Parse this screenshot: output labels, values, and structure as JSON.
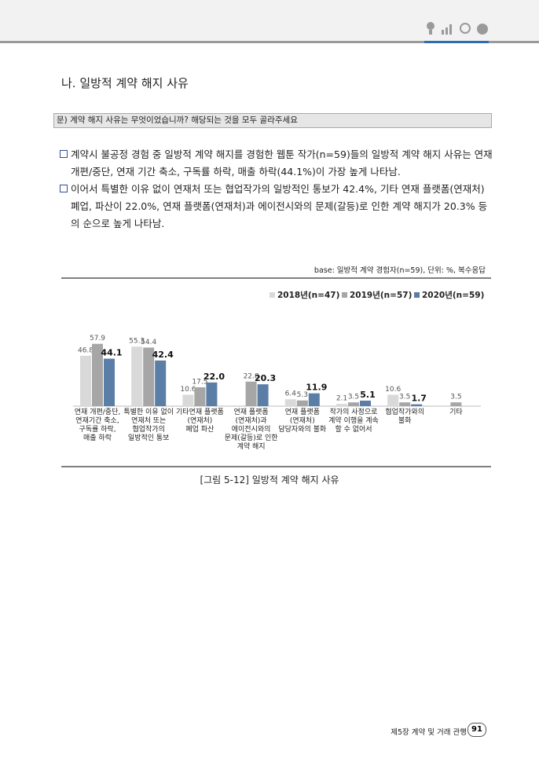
{
  "header": {
    "section_title": "나. 일방적 계약 해지 사유",
    "question": "문) 계약 해지 사유는 무엇이었습니까? 해당되는 것을 모두 골라주세요"
  },
  "bullets": [
    "계약시 불공정 경험 중 일방적 계약 해지를 경험한 웹툰 작가(n=59)들의 일방적 계약 해지 사유는 연재 개편/중단, 연재 기간 축소, 구독률 하락, 매출 하락(44.1%)이 가장 높게 나타남.",
    "이어서 특별한 이유 없이 연재처 또는 협업작가의 일방적인 통보가 42.4%, 기타 연재 플랫폼(연재처) 폐업, 파산이 22.0%, 연재 플랫폼(연재처)과 에이전시와의 문제(갈등)로 인한 계약 해지가 20.3% 등의 순으로 높게 나타남."
  ],
  "base_note": "base: 일방적 계약 경험자(n=59), 단위: %, 복수응답",
  "chart_data": {
    "type": "bar",
    "categories": [
      "연재 개편/중단,\n연재기간 축소,\n구독률 하락,\n매출 하락",
      "특별한 이유 없이\n연재처 또는\n협업작가의\n일방적인 통보",
      "기타연재 플랫폼\n(연재처)\n폐업 파산",
      "연재 플랫폼\n(연재처)과\n에이전시와의\n문제(갈등)로 인한\n계약 해지",
      "연재 플랫폼\n(연재처)\n담당자와의 불화",
      "작가의 사정으로\n계약 이행을 계속\n할 수 없어서",
      "협업작가와의\n불화",
      "기타"
    ],
    "series": [
      {
        "name": "2018년(n=47)",
        "color": "#d9d9d9",
        "values": [
          46.8,
          55.3,
          10.6,
          null,
          6.4,
          2.1,
          10.6,
          null
        ],
        "value_labels": [
          "46.8",
          "55.3",
          "10.6",
          null,
          "6.4",
          "2.1",
          "10.6",
          null
        ]
      },
      {
        "name": "2019년(n=57)",
        "color": "#a6a6a6",
        "values": [
          57.9,
          54.4,
          17.5,
          22.8,
          5.3,
          3.5,
          3.5,
          3.5
        ],
        "value_labels": [
          "57.9",
          "54.4",
          "17.5",
          "22.8",
          "5.3",
          "3.5",
          "3.5",
          "3.5"
        ]
      },
      {
        "name": "2020년(n=59)",
        "color": "#5a7ea6",
        "values": [
          44.1,
          42.4,
          22.0,
          20.3,
          11.9,
          5.1,
          1.7,
          null
        ],
        "value_labels": [
          "44.1",
          "42.4",
          "22.0",
          "20.3",
          "11.9",
          "5.1",
          "1.7",
          null
        ]
      }
    ],
    "legend": "top-right"
  },
  "caption": "[그림 5-12] 일방적 계약 해지 사유",
  "footer": {
    "chapter": "제5장 계약 및 거래 관행",
    "page": "91"
  }
}
